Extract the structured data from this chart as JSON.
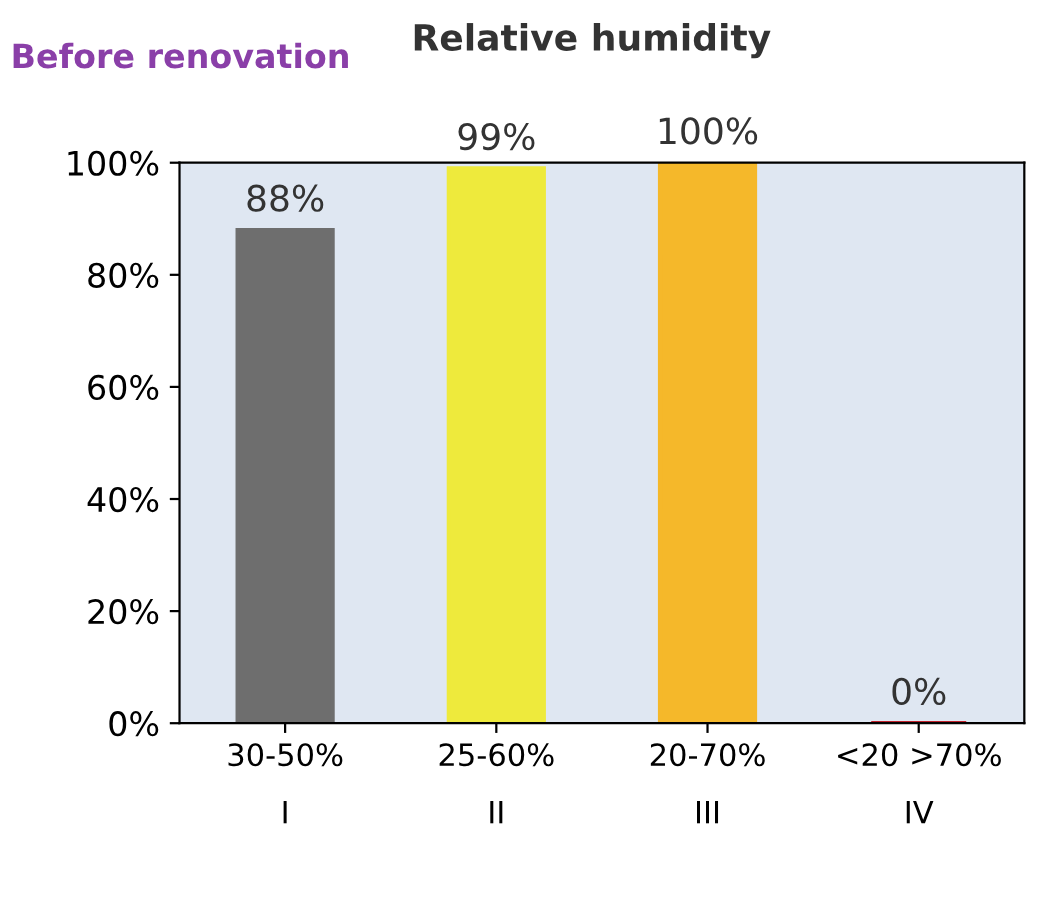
{
  "chart_data": {
    "type": "bar",
    "title": "Relative humidity",
    "subtitle": "Before renovation",
    "categories": [
      "30-50%\nI",
      "25-60%\nII",
      "20-70%\nIII",
      "<20 >70%\nIV"
    ],
    "values": [
      88,
      99,
      100,
      0
    ],
    "colors": [
      "#6e6e6e",
      "#eeea3c",
      "#f5b82a",
      "#c0202a"
    ],
    "value_labels": [
      "88%",
      "99%",
      "100%",
      "0%"
    ],
    "ylim": [
      0,
      100
    ],
    "yticks": [
      {
        "value": 0,
        "label": "0%"
      },
      {
        "value": 20,
        "label": "20%"
      },
      {
        "value": 40,
        "label": "40%"
      },
      {
        "value": 60,
        "label": "60%"
      },
      {
        "value": 80,
        "label": "80%"
      },
      {
        "value": 100,
        "label": "100%"
      }
    ],
    "grid": false
  }
}
